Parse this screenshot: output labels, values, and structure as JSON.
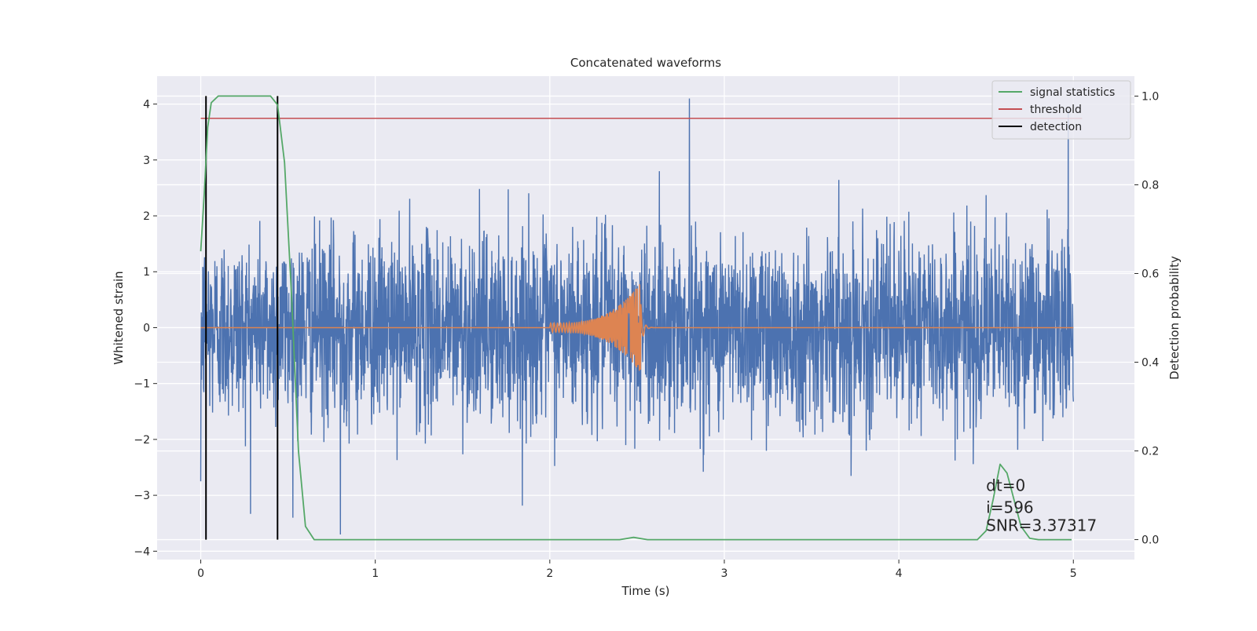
{
  "chart_data": {
    "type": "line",
    "title": "Concatenated waveforms",
    "xlabel": "Time (s)",
    "ylabel": "Whitened strain",
    "y2label": "Detection probability",
    "xlim": [
      -0.25,
      5.35
    ],
    "ylim": [
      -4.15,
      4.5
    ],
    "y2lim": [
      -0.045,
      1.045
    ],
    "xticks": [
      0,
      1,
      2,
      3,
      4,
      5
    ],
    "yticks": [
      -4,
      -3,
      -2,
      -1,
      0,
      1,
      2,
      3,
      4
    ],
    "y2ticks": [
      0.0,
      0.2,
      0.4,
      0.6,
      0.8,
      1.0
    ],
    "y2tick_labels": [
      "0.0",
      "0.2",
      "0.4",
      "0.6",
      "0.8",
      "1.0"
    ],
    "grid": true,
    "background": "#eaeaf2",
    "legend_position": "top-right",
    "series": [
      {
        "name": "whitened strain",
        "axis": "left",
        "color": "#4c72b0",
        "description_points": {
          "x_range": [
            0,
            5
          ],
          "noise_amplitude_typical": 1.5,
          "peak_values": [
            {
              "x": 0.0,
              "y": -2.75
            },
            {
              "x": 0.8,
              "y": -3.7
            },
            {
              "x": 2.8,
              "y": 4.1
            },
            {
              "x": 4.97,
              "y": 3.9
            }
          ]
        }
      },
      {
        "name": "injected signal",
        "axis": "left",
        "color": "#dd8452",
        "chirp": {
          "start": 2.0,
          "merger": 2.52,
          "end": 2.6,
          "amp_start": 0.08,
          "amp_peak": 0.8
        }
      },
      {
        "name": "signal statistics",
        "axis": "right",
        "color": "#55a868",
        "points": [
          [
            0.0,
            0.65
          ],
          [
            0.02,
            0.78
          ],
          [
            0.04,
            0.93
          ],
          [
            0.06,
            0.985
          ],
          [
            0.1,
            1.0
          ],
          [
            0.4,
            1.0
          ],
          [
            0.44,
            0.98
          ],
          [
            0.48,
            0.85
          ],
          [
            0.52,
            0.55
          ],
          [
            0.56,
            0.2
          ],
          [
            0.6,
            0.03
          ],
          [
            0.65,
            0.0
          ],
          [
            2.4,
            0.0
          ],
          [
            2.48,
            0.005
          ],
          [
            2.56,
            0.0
          ],
          [
            4.45,
            0.0
          ],
          [
            4.5,
            0.02
          ],
          [
            4.54,
            0.09
          ],
          [
            4.58,
            0.17
          ],
          [
            4.62,
            0.15
          ],
          [
            4.66,
            0.09
          ],
          [
            4.7,
            0.03
          ],
          [
            4.75,
            0.003
          ],
          [
            4.8,
            0.0
          ],
          [
            4.99,
            0.0
          ]
        ]
      },
      {
        "name": "threshold",
        "axis": "right",
        "color": "#c44e52",
        "value": 0.95,
        "x_range": [
          0,
          5.05
        ]
      },
      {
        "name": "detection",
        "axis": "right",
        "color": "#000000",
        "x_positions": [
          0.03,
          0.44
        ],
        "y_range": [
          0.0,
          1.0
        ]
      }
    ],
    "legend": [
      {
        "label": "signal statistics",
        "color": "#55a868"
      },
      {
        "label": "threshold",
        "color": "#c44e52"
      },
      {
        "label": "detection",
        "color": "#000000"
      }
    ],
    "annotations": [
      {
        "text": "dt=0",
        "x": 4.5,
        "y2": 0.11
      },
      {
        "text": "i=596",
        "x": 4.5,
        "y2": 0.06
      },
      {
        "text": "SNR=3.37317",
        "x": 4.5,
        "y2": 0.02
      }
    ]
  }
}
